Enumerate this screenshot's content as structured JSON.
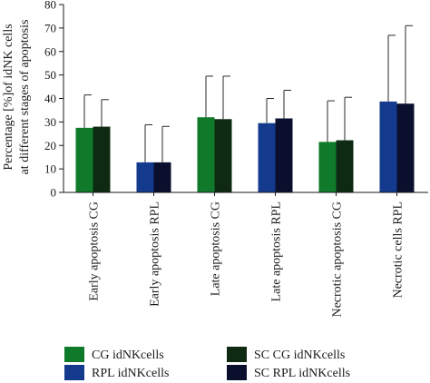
{
  "chart_data": {
    "type": "bar",
    "title": "",
    "ylabel_lines": [
      "Percentage [%]of idNK cells",
      "at different stages of apoptosis"
    ],
    "xlabel": "",
    "ylim": [
      0,
      80
    ],
    "yticks": [
      0,
      10,
      20,
      30,
      40,
      50,
      60,
      70,
      80
    ],
    "grid": false,
    "legend_position": "bottom",
    "categories": [
      "Early apoptosis CG",
      "Early apoptosis RPL",
      "Late apoptosis CG",
      "Late apoptosis RPL",
      "Necrotic apoptosis CG",
      "Necrotic cells RPL"
    ],
    "bars": [
      {
        "category": "Early apoptosis CG",
        "series": "CG idNKcells",
        "value": 27.5,
        "error": 14
      },
      {
        "category": "Early apoptosis CG",
        "series": "SC CG idNKcells",
        "value": 28,
        "error": 11.5
      },
      {
        "category": "Early apoptosis RPL",
        "series": "RPL idNKcells",
        "value": 12.8,
        "error": 16
      },
      {
        "category": "Early apoptosis RPL",
        "series": "SC RPL idNKcells",
        "value": 12.8,
        "error": 15.3
      },
      {
        "category": "Late apoptosis CG",
        "series": "CG idNKcells",
        "value": 32,
        "error": 17.5
      },
      {
        "category": "Late apoptosis CG",
        "series": "SC CG idNKcells",
        "value": 31.2,
        "error": 18.3
      },
      {
        "category": "Late apoptosis RPL",
        "series": "RPL idNKcells",
        "value": 29.5,
        "error": 10.5
      },
      {
        "category": "Late apoptosis RPL",
        "series": "SC RPL idNKcells",
        "value": 31.5,
        "error": 12
      },
      {
        "category": "Necrotic apoptosis CG",
        "series": "CG idNKcells",
        "value": 21.5,
        "error": 17.5
      },
      {
        "category": "Necrotic apoptosis CG",
        "series": "SC CG idNKcells",
        "value": 22.2,
        "error": 18.3
      },
      {
        "category": "Necrotic cells RPL",
        "series": "RPL idNKcells",
        "value": 38.7,
        "error": 28.2
      },
      {
        "category": "Necrotic cells RPL",
        "series": "SC RPL idNKcells",
        "value": 37.8,
        "error": 33.2
      }
    ],
    "series": [
      {
        "name": "CG idNKcells",
        "color": "#0f7a2a"
      },
      {
        "name": "SC CG idNKcells",
        "color": "#0e2a12"
      },
      {
        "name": "RPL idNKcells",
        "color": "#133a8c"
      },
      {
        "name": "SC RPL idNKcells",
        "color": "#0a0f2e"
      }
    ]
  }
}
